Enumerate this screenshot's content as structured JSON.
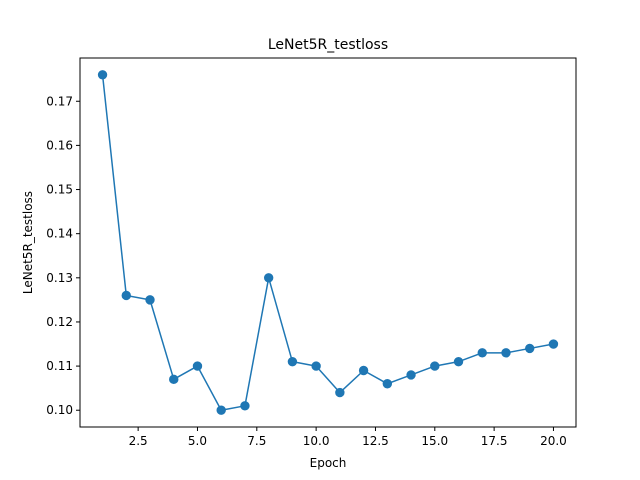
{
  "chart_data": {
    "type": "line",
    "title": "LeNet5R_testloss",
    "xlabel": "Epoch",
    "ylabel": "LeNet5R_testloss",
    "xlim": [
      0.05,
      20.95
    ],
    "ylim": [
      0.0962,
      0.1798
    ],
    "xticks": [
      2.5,
      5.0,
      7.5,
      10.0,
      12.5,
      15.0,
      17.5,
      20.0
    ],
    "xtick_labels": [
      "2.5",
      "5.0",
      "7.5",
      "10.0",
      "12.5",
      "15.0",
      "17.5",
      "20.0"
    ],
    "yticks": [
      0.1,
      0.11,
      0.12,
      0.13,
      0.14,
      0.15,
      0.16,
      0.17
    ],
    "ytick_labels": [
      "0.10",
      "0.11",
      "0.12",
      "0.13",
      "0.14",
      "0.15",
      "0.16",
      "0.17"
    ],
    "grid": false,
    "color": "#1f77b4",
    "marker": "circle",
    "x": [
      1,
      2,
      3,
      4,
      5,
      6,
      7,
      8,
      9,
      10,
      11,
      12,
      13,
      14,
      15,
      16,
      17,
      18,
      19,
      20
    ],
    "y": [
      0.176,
      0.126,
      0.125,
      0.107,
      0.11,
      0.1,
      0.101,
      0.13,
      0.111,
      0.11,
      0.104,
      0.109,
      0.106,
      0.108,
      0.11,
      0.111,
      0.113,
      0.113,
      0.114,
      0.115
    ]
  }
}
